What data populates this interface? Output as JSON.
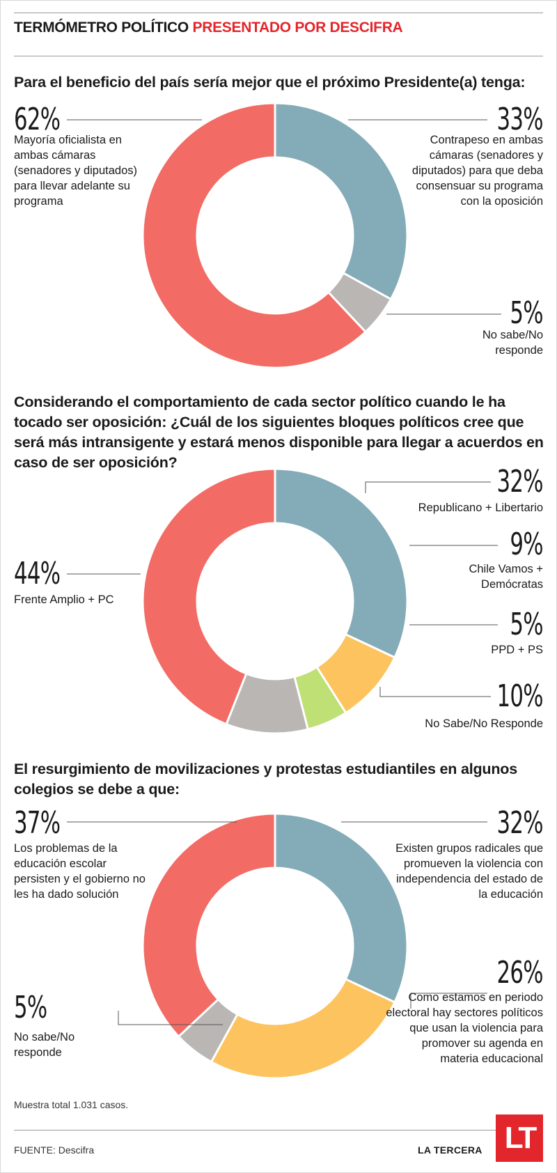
{
  "header": {
    "title": "TERMÓMETRO POLÍTICO",
    "sponsor": "PRESENTADO POR DESCIFRA"
  },
  "colors": {
    "red": "#f26b65",
    "blue": "#84abb8",
    "gray": "#b9b6b3",
    "yellow": "#fcc35e",
    "green": "#bfe074",
    "brand_red": "#e3262b"
  },
  "chart_data": [
    {
      "type": "pie",
      "title": "Para el beneficio del país sería mejor que el próximo Presidente(a) tenga:",
      "slices": [
        {
          "value": 33,
          "pct_label": "33%",
          "label": "Contrapeso en ambas cámaras (senadores y diputados) para que deba consensuar su programa con la oposición",
          "color": "#84abb8"
        },
        {
          "value": 5,
          "pct_label": "5%",
          "label": "No sabe/No responde",
          "color": "#b9b6b3"
        },
        {
          "value": 62,
          "pct_label": "62%",
          "label": "Mayoría oficialista en ambas cámaras (senadores y diputados) para llevar adelante su programa",
          "color": "#f26b65"
        }
      ]
    },
    {
      "type": "pie",
      "title": "Considerando el comportamiento de cada sector político cuando le ha tocado ser oposición: ¿Cuál de los siguientes bloques políticos cree que será más intransigente y estará menos disponible para llegar a acuerdos en caso de ser oposición?",
      "slices": [
        {
          "value": 32,
          "pct_label": "32%",
          "label": "Republicano + Libertario",
          "color": "#84abb8"
        },
        {
          "value": 9,
          "pct_label": "9%",
          "label": "Chile Vamos + Demócratas",
          "color": "#fcc35e"
        },
        {
          "value": 5,
          "pct_label": "5%",
          "label": "PPD + PS",
          "color": "#bfe074"
        },
        {
          "value": 10,
          "pct_label": "10%",
          "label": "No Sabe/No Responde",
          "color": "#b9b6b3"
        },
        {
          "value": 44,
          "pct_label": "44%",
          "label": "Frente Amplio + PC",
          "color": "#f26b65"
        }
      ]
    },
    {
      "type": "pie",
      "title": "El resurgimiento de movilizaciones y protestas estudiantiles en algunos colegios se debe a que:",
      "slices": [
        {
          "value": 32,
          "pct_label": "32%",
          "label": "Existen grupos radicales que promueven la violencia con independencia del estado de la educación",
          "color": "#84abb8"
        },
        {
          "value": 26,
          "pct_label": "26%",
          "label": "Como estamos en periodo electoral hay sectores políticos que usan la violencia para promover su agenda en materia educacional",
          "color": "#fcc35e"
        },
        {
          "value": 5,
          "pct_label": "5%",
          "label": "No sabe/No responde",
          "color": "#b9b6b3"
        },
        {
          "value": 37,
          "pct_label": "37%",
          "label": "Los problemas de la educación escolar persisten y el gobierno no les ha dado solución",
          "color": "#f26b65"
        }
      ]
    }
  ],
  "footer": {
    "sample": "Muestra total 1.031 casos.",
    "source": "FUENTE: Descifra",
    "publisher": "LA TERCERA",
    "logo": "LT"
  }
}
